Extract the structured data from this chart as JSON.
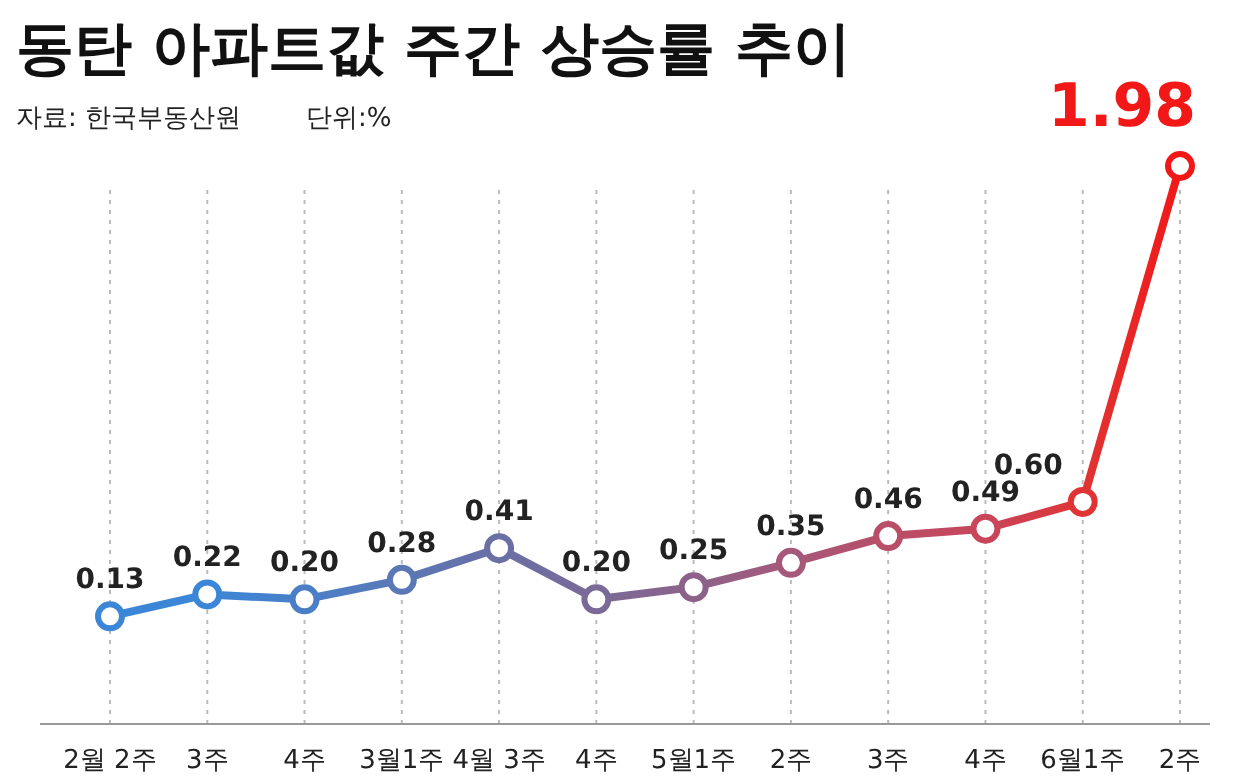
{
  "chart_data": {
    "type": "line",
    "title": "동탄 아파트값 주간 상승률 추이",
    "annotations": [
      "자료: 한국부동산원",
      "단위:%"
    ],
    "categories": [
      "2월 2주",
      "3주",
      "4주",
      "3월1주",
      "4월 3주",
      "4주",
      "5월1주",
      "2주",
      "3주",
      "4주",
      "6월1주",
      "2주"
    ],
    "series": [
      {
        "values": [
          0.13,
          0.22,
          0.2,
          0.28,
          0.41,
          0.2,
          0.25,
          0.35,
          0.46,
          0.49,
          0.6,
          1.98
        ],
        "value_labels": [
          "0.13",
          "0.22",
          "0.20",
          "0.28",
          "0.41",
          "0.20",
          "0.25",
          "0.35",
          "0.46",
          "0.49",
          "0.60",
          "1.98"
        ],
        "colors": [
          "#3b86d6",
          "#3b86d6",
          "#4a7fc8",
          "#5a78b6",
          "#6a6fa4",
          "#7a6a98",
          "#8c628a",
          "#a6587a",
          "#b84e68",
          "#c9455a",
          "#e03434",
          "#f21818"
        ]
      }
    ],
    "marker": "circle",
    "grid": "x"
  }
}
